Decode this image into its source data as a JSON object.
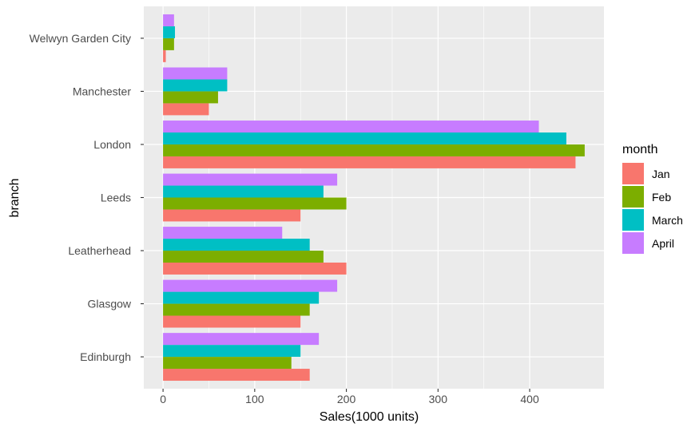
{
  "chart_data": {
    "type": "bar",
    "orientation": "horizontal",
    "categories": [
      "Edinburgh",
      "Glasgow",
      "Leatherhead",
      "Leeds",
      "London",
      "Manchester",
      "Welwyn Garden City"
    ],
    "series": [
      {
        "name": "Jan",
        "color": "#F8766D",
        "values": [
          160,
          150,
          200,
          150,
          450,
          50,
          3
        ]
      },
      {
        "name": "Feb",
        "color": "#7CAE00",
        "values": [
          140,
          160,
          175,
          200,
          460,
          60,
          12
        ]
      },
      {
        "name": "March",
        "color": "#00BFC4",
        "values": [
          150,
          170,
          160,
          175,
          440,
          70,
          13
        ]
      },
      {
        "name": "April",
        "color": "#C77CFF",
        "values": [
          170,
          190,
          130,
          190,
          410,
          70,
          12
        ]
      }
    ],
    "xlabel": "Sales(1000 units)",
    "ylabel": "branch",
    "legend_title": "month",
    "legend_position": "right",
    "xlim": [
      -21,
      481
    ],
    "xticks": [
      0,
      100,
      200,
      300,
      400
    ],
    "grid": true,
    "panel_background": "#EBEBEB",
    "grid_color": "#FFFFFF"
  }
}
